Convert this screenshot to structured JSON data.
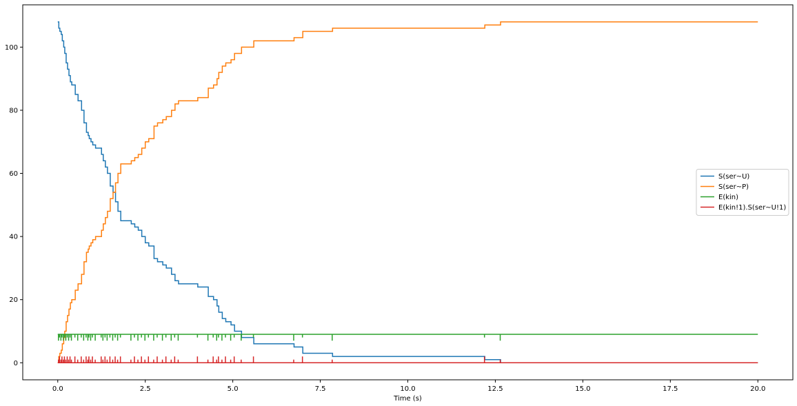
{
  "chart_data": {
    "type": "line",
    "title": "",
    "xlabel": "Time (s)",
    "ylabel": "",
    "xlim": [
      -1.0,
      21.0
    ],
    "ylim": [
      -5.4,
      113.4
    ],
    "x_ticks": [
      0.0,
      2.5,
      5.0,
      7.5,
      10.0,
      12.5,
      15.0,
      17.5,
      20.0
    ],
    "x_tick_labels": [
      "0.0",
      "2.5",
      "5.0",
      "7.5",
      "10.0",
      "12.5",
      "15.0",
      "17.5",
      "20.0"
    ],
    "y_ticks": [
      0,
      20,
      40,
      60,
      80,
      100
    ],
    "y_tick_labels": [
      "0",
      "20",
      "40",
      "60",
      "80",
      "100"
    ],
    "grid": false,
    "legend_position": "center-right",
    "series": [
      {
        "name": "S(ser~U)",
        "color": "#1f77b4",
        "step": true,
        "x": [
          0.0,
          0.03,
          0.06,
          0.1,
          0.13,
          0.17,
          0.2,
          0.24,
          0.28,
          0.32,
          0.36,
          0.4,
          0.5,
          0.58,
          0.68,
          0.75,
          0.82,
          0.87,
          0.9,
          0.95,
          1.0,
          1.08,
          1.25,
          1.3,
          1.36,
          1.42,
          1.5,
          1.58,
          1.65,
          1.72,
          1.8,
          2.1,
          2.2,
          2.3,
          2.4,
          2.5,
          2.6,
          2.75,
          2.85,
          3.0,
          3.1,
          3.25,
          3.35,
          3.45,
          3.6,
          4.0,
          4.3,
          4.45,
          4.55,
          4.6,
          4.7,
          4.8,
          4.95,
          5.05,
          5.25,
          5.6,
          6.75,
          7.0,
          7.85,
          12.2,
          12.65,
          20.0
        ],
        "y": [
          108,
          106,
          105,
          104,
          102,
          100,
          98,
          95,
          93,
          91,
          89,
          88,
          85,
          83,
          80,
          76,
          73,
          72,
          71,
          70,
          69,
          68,
          66,
          64,
          62,
          60,
          56,
          54,
          51,
          48,
          45,
          44,
          43,
          42,
          40,
          38,
          37,
          33,
          32,
          31,
          30,
          28,
          26,
          25,
          25,
          24,
          21,
          20,
          18,
          16,
          14,
          13,
          12,
          10,
          8,
          6,
          5,
          3,
          2,
          1,
          0,
          0
        ]
      },
      {
        "name": "S(ser~P)",
        "color": "#ff7f0e",
        "step": true,
        "x": [
          0.0,
          0.03,
          0.06,
          0.1,
          0.13,
          0.17,
          0.2,
          0.24,
          0.28,
          0.32,
          0.36,
          0.4,
          0.5,
          0.58,
          0.68,
          0.75,
          0.82,
          0.87,
          0.9,
          0.95,
          1.0,
          1.08,
          1.25,
          1.3,
          1.36,
          1.42,
          1.5,
          1.58,
          1.65,
          1.72,
          1.8,
          2.1,
          2.2,
          2.3,
          2.4,
          2.5,
          2.6,
          2.75,
          2.85,
          3.0,
          3.1,
          3.25,
          3.35,
          3.45,
          3.6,
          4.0,
          4.3,
          4.45,
          4.55,
          4.6,
          4.7,
          4.8,
          4.95,
          5.05,
          5.25,
          5.6,
          6.75,
          7.0,
          7.85,
          12.2,
          12.65,
          20.0
        ],
        "y": [
          0,
          2,
          3,
          4,
          6,
          8,
          10,
          13,
          15,
          17,
          19,
          20,
          23,
          25,
          28,
          32,
          35,
          36,
          37,
          38,
          39,
          40,
          42,
          44,
          46,
          48,
          52,
          54,
          57,
          60,
          63,
          64,
          65,
          66,
          68,
          70,
          71,
          75,
          76,
          77,
          78,
          80,
          82,
          83,
          83,
          84,
          87,
          88,
          90,
          92,
          94,
          95,
          96,
          98,
          100,
          102,
          103,
          105,
          106,
          107,
          108,
          108
        ]
      },
      {
        "name": "E(kin)",
        "color": "#2ca02c",
        "step": true,
        "x": [
          0.0,
          20.0
        ],
        "y": [
          9,
          9
        ],
        "spikes_down_to": [
          7,
          8
        ],
        "spike_times": [
          0.02,
          0.05,
          0.09,
          0.12,
          0.16,
          0.19,
          0.23,
          0.27,
          0.31,
          0.35,
          0.39,
          0.49,
          0.57,
          0.67,
          0.74,
          0.81,
          0.86,
          0.89,
          0.94,
          0.99,
          1.07,
          1.24,
          1.29,
          1.35,
          1.41,
          1.49,
          1.57,
          1.64,
          1.71,
          1.79,
          2.09,
          2.19,
          2.29,
          2.39,
          2.49,
          2.59,
          2.74,
          2.84,
          2.99,
          3.09,
          3.24,
          3.34,
          3.44,
          3.99,
          4.29,
          4.44,
          4.54,
          4.59,
          4.69,
          4.79,
          4.94,
          5.04,
          5.24,
          5.59,
          6.74,
          6.99,
          7.84,
          12.19,
          12.64
        ]
      },
      {
        "name": "E(kin!1).S(ser~U!1)",
        "color": "#d62728",
        "step": true,
        "x": [
          0.0,
          20.0
        ],
        "y": [
          0,
          0
        ],
        "spikes_up_to": [
          1,
          2
        ],
        "spike_times": [
          0.02,
          0.05,
          0.09,
          0.12,
          0.16,
          0.19,
          0.23,
          0.27,
          0.31,
          0.35,
          0.39,
          0.49,
          0.57,
          0.67,
          0.74,
          0.81,
          0.86,
          0.89,
          0.94,
          0.99,
          1.07,
          1.24,
          1.29,
          1.35,
          1.41,
          1.49,
          1.57,
          1.64,
          1.71,
          1.79,
          2.09,
          2.19,
          2.29,
          2.39,
          2.49,
          2.59,
          2.74,
          2.84,
          2.99,
          3.09,
          3.24,
          3.34,
          3.44,
          3.99,
          4.29,
          4.44,
          4.54,
          4.59,
          4.69,
          4.79,
          4.94,
          5.04,
          5.24,
          5.59,
          6.74,
          6.99,
          7.84,
          12.19,
          12.64
        ]
      }
    ]
  }
}
